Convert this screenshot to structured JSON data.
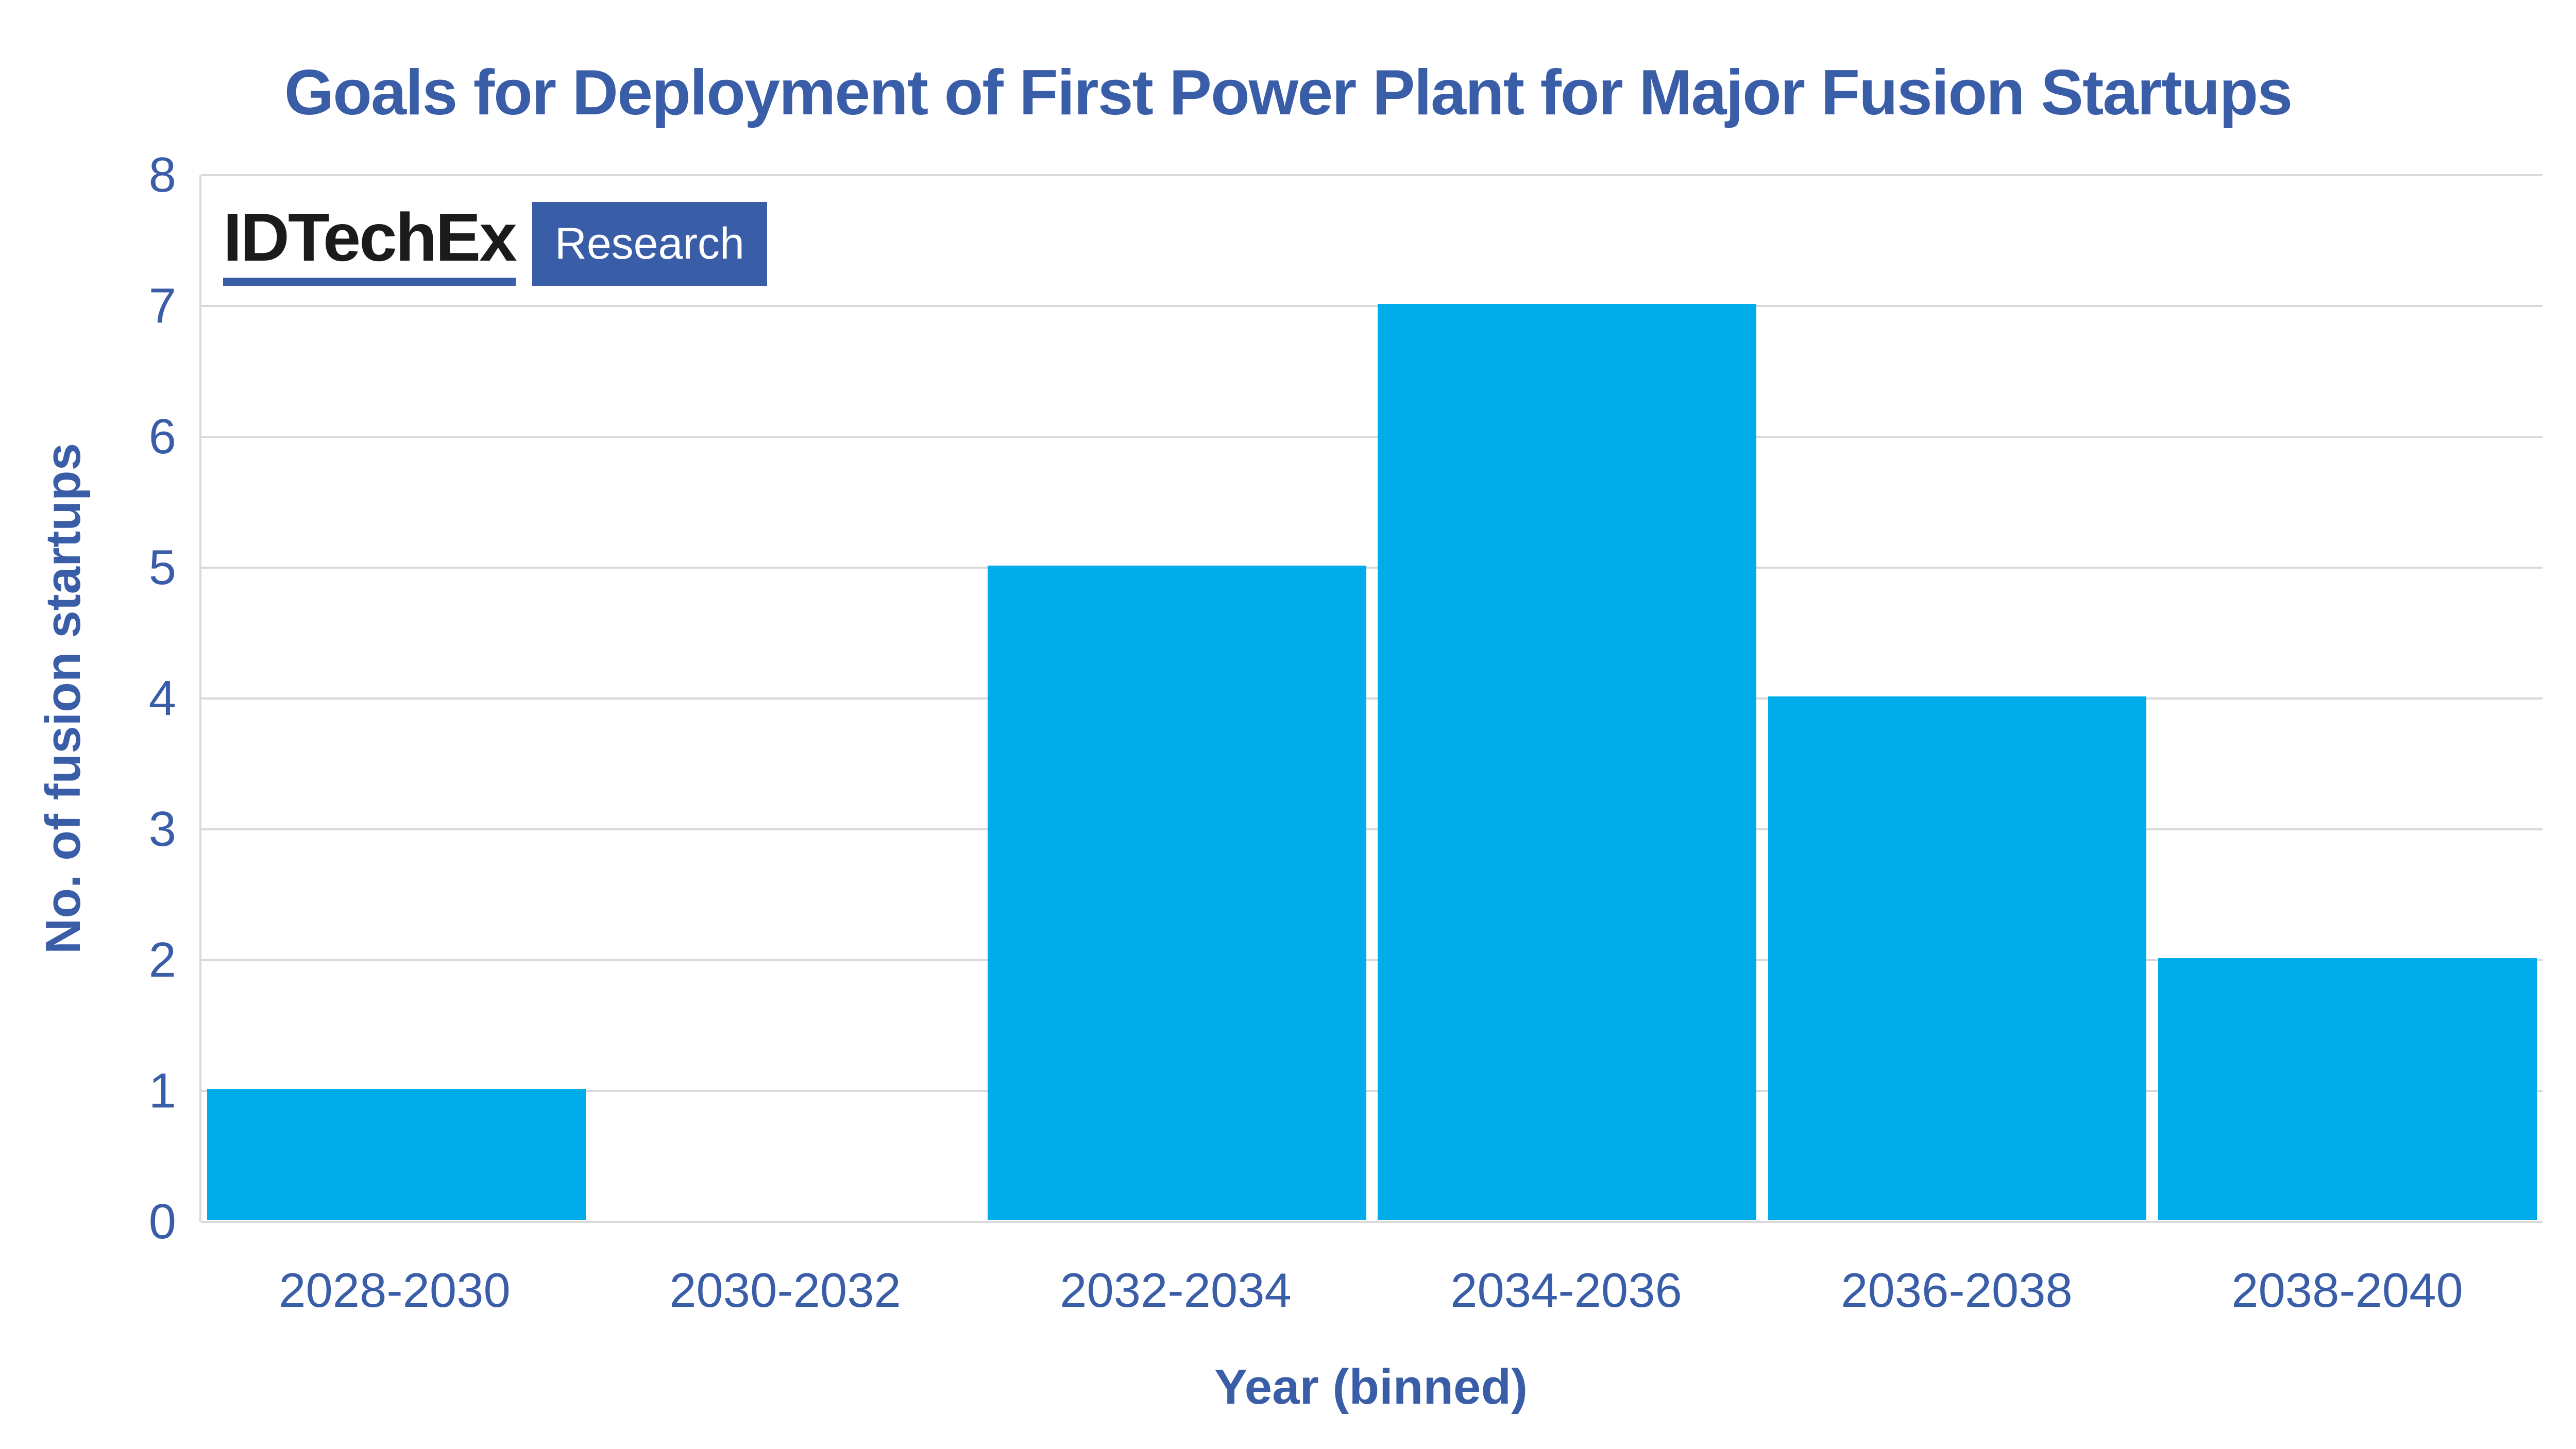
{
  "page": {
    "background": "#FFFFFF"
  },
  "logo": {
    "brand": "IDTechEx",
    "badge": "Research"
  },
  "chart_data": {
    "type": "bar",
    "title": "Goals for Deployment of First Power Plant for Major Fusion Startups",
    "categories": [
      "2028-2030",
      "2030-2032",
      "2032-2034",
      "2034-2036",
      "2036-2038",
      "2038-2040"
    ],
    "values": [
      1,
      0,
      5,
      7,
      4,
      2
    ],
    "xlabel": "Year (binned)",
    "ylabel": "No. of fusion startups",
    "ylim": [
      0,
      8
    ],
    "yticks": [
      0,
      1,
      2,
      3,
      4,
      5,
      6,
      7,
      8
    ],
    "grid": "horizontal-light",
    "legend": "none",
    "colors": {
      "bar": "#00ADEA",
      "text_blue": "#3A5DA8",
      "grid": "#D9D9D9",
      "accent": "#3A5DA8",
      "brand_black": "#1B1B1B",
      "badge_text": "#FFFFFF"
    }
  }
}
